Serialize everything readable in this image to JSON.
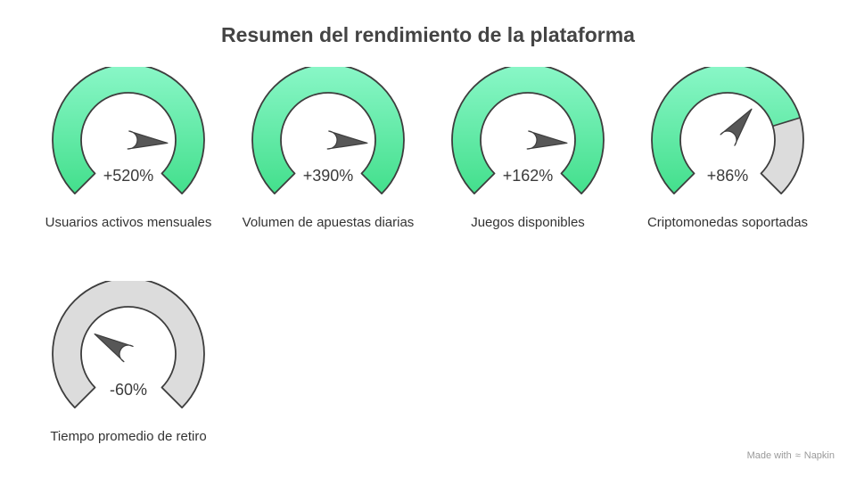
{
  "title": "Resumen del rendimiento de la plataforma",
  "colors": {
    "fill_top": "#8af7c8",
    "fill_bottom": "#43df8c",
    "gray": "#dcdcdc",
    "outline": "#3d3d3d",
    "needle": "#575757"
  },
  "gauges": [
    {
      "value_text": "+520%",
      "label": "Usuarios activos mensuales",
      "fill": 1.0,
      "needle_level": 0.85
    },
    {
      "value_text": "+390%",
      "label": "Volumen de apuestas diarias",
      "fill": 1.0,
      "needle_level": 0.85
    },
    {
      "value_text": "+162%",
      "label": "Juegos disponibles",
      "fill": 1.0,
      "needle_level": 0.85
    },
    {
      "value_text": "+86%",
      "label": "Criptomonedas soportadas",
      "fill": 0.77,
      "needle_level": 0.64
    },
    {
      "value_text": "-60%",
      "label": "Tiempo promedio de retiro",
      "fill": 0.0,
      "needle_level": 0.28
    }
  ],
  "watermark": {
    "text": "Made with",
    "brand": "Napkin",
    "icon": "napkin-logo-icon"
  }
}
